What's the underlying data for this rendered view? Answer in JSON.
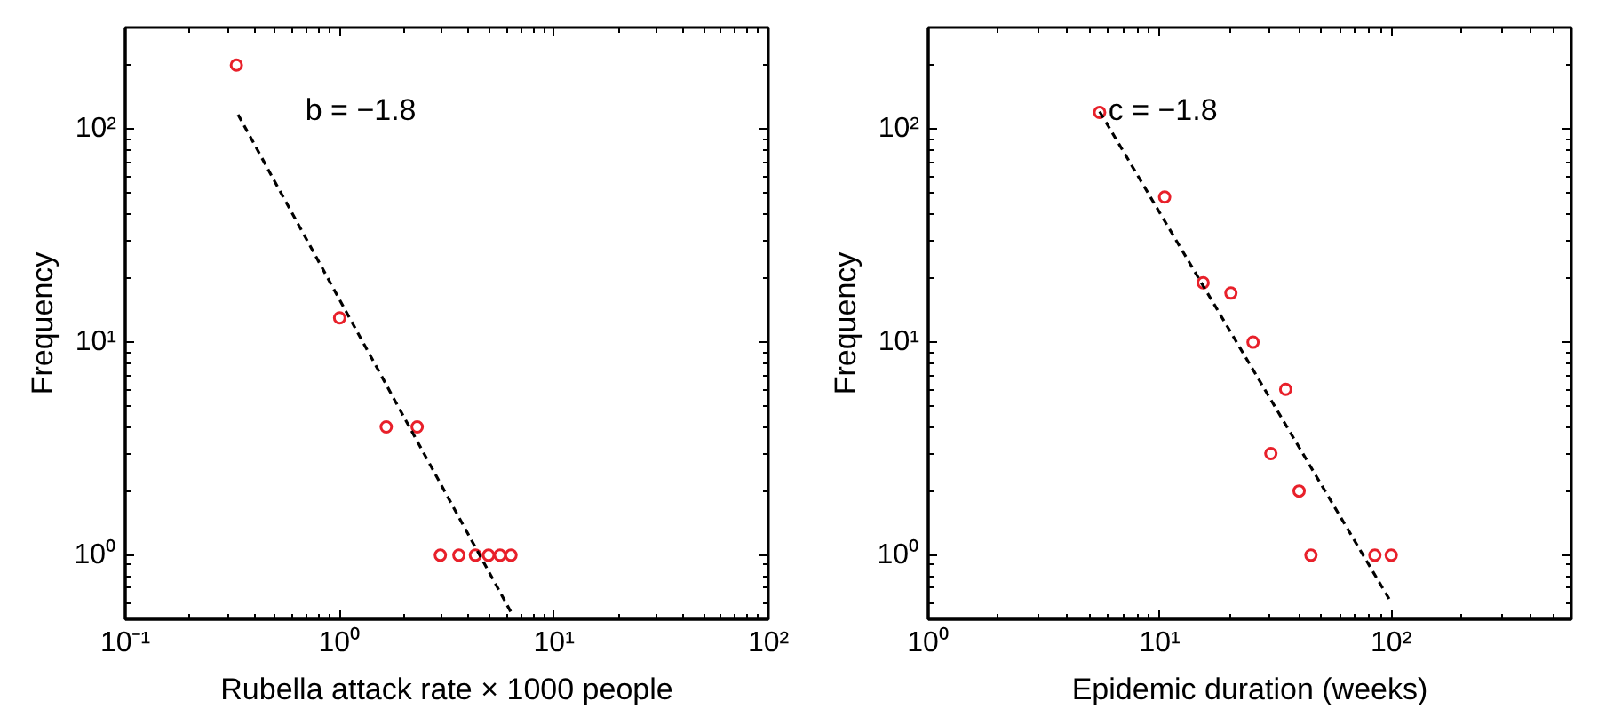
{
  "chart_data": [
    {
      "type": "scatter",
      "xlabel": "Rubella attack rate × 1000 people",
      "ylabel": "Frequency",
      "log": "xy",
      "xlim": [
        0.1,
        100
      ],
      "ylim": [
        0.5,
        300
      ],
      "xticks": [
        {
          "value": 0.1,
          "label": "10⁻¹"
        },
        {
          "value": 1,
          "label": "10⁰"
        },
        {
          "value": 10,
          "label": "10¹"
        },
        {
          "value": 100,
          "label": "10²"
        }
      ],
      "yticks": [
        {
          "value": 1,
          "label": "10⁰"
        },
        {
          "value": 10,
          "label": "10¹"
        },
        {
          "value": 100,
          "label": "10²"
        }
      ],
      "series": [
        {
          "color": "#e8202a",
          "marker": "circle",
          "x": [
            0.33,
            1.0,
            1.65,
            2.3,
            2.95,
            3.6,
            4.3,
            4.95,
            5.6,
            6.3
          ],
          "values": [
            200,
            13,
            4,
            4,
            1,
            1,
            1,
            1,
            1,
            1
          ]
        },
        {
          "type": "line",
          "color": "#000000",
          "line_style": "dashed",
          "marker": "none",
          "x": [
            0.336,
            6.3
          ],
          "values": [
            117,
            0.54
          ]
        }
      ],
      "annotations": [
        "b = −1.8"
      ]
    },
    {
      "type": "scatter",
      "xlabel": "Epidemic duration (weeks)",
      "ylabel": "Frequency",
      "log": "xy",
      "xlim": [
        1,
        600
      ],
      "ylim": [
        0.5,
        300
      ],
      "xticks": [
        {
          "value": 1,
          "label": "10⁰"
        },
        {
          "value": 10,
          "label": "10¹"
        },
        {
          "value": 100,
          "label": "10²"
        }
      ],
      "yticks": [
        {
          "value": 1,
          "label": "10⁰"
        },
        {
          "value": 10,
          "label": "10¹"
        },
        {
          "value": 100,
          "label": "10²"
        }
      ],
      "series": [
        {
          "color": "#e8202a",
          "marker": "circle",
          "x": [
            5.5,
            10.5,
            15.4,
            20.3,
            25.3,
            35,
            30.2,
            40,
            45,
            85,
            100
          ],
          "values": [
            120,
            48,
            19,
            17,
            10,
            6,
            3,
            2,
            1,
            1,
            1
          ]
        },
        {
          "type": "line",
          "color": "#000000",
          "line_style": "dashed",
          "marker": "none",
          "x": [
            5.5,
            100
          ],
          "values": [
            121,
            0.6
          ]
        }
      ],
      "annotations": [
        "c = −1.8"
      ]
    }
  ]
}
